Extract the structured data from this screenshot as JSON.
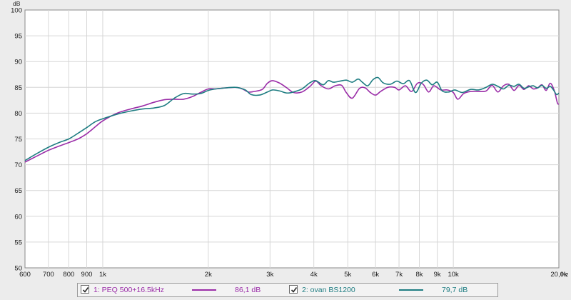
{
  "chart_data": {
    "type": "line",
    "x_scale": "log",
    "y_unit": "dB",
    "x_unit": "Hz",
    "ylim": [
      50,
      100
    ],
    "xlim": [
      600,
      20000
    ],
    "grid": true,
    "y_ticks": [
      "50",
      "55",
      "60",
      "65",
      "70",
      "75",
      "80",
      "85",
      "90",
      "95",
      "100"
    ],
    "x_ticks": [
      {
        "v": 600,
        "label": "600"
      },
      {
        "v": 700,
        "label": "700"
      },
      {
        "v": 800,
        "label": "800"
      },
      {
        "v": 900,
        "label": "900"
      },
      {
        "v": 1000,
        "label": "1k"
      },
      {
        "v": 2000,
        "label": "2k"
      },
      {
        "v": 3000,
        "label": "3k"
      },
      {
        "v": 4000,
        "label": "4k"
      },
      {
        "v": 5000,
        "label": "5k"
      },
      {
        "v": 6000,
        "label": "6k"
      },
      {
        "v": 7000,
        "label": "7k"
      },
      {
        "v": 8000,
        "label": "8k"
      },
      {
        "v": 9000,
        "label": "9k"
      },
      {
        "v": 10000,
        "label": "10k"
      },
      {
        "v": 20000,
        "label": "20,0k"
      }
    ],
    "series": [
      {
        "name": "1: PEQ 500+16.5kHz",
        "color": "#9b2ea8",
        "points": [
          [
            600,
            70.5
          ],
          [
            650,
            71.7
          ],
          [
            700,
            72.8
          ],
          [
            750,
            73.6
          ],
          [
            800,
            74.3
          ],
          [
            850,
            75.0
          ],
          [
            900,
            76.0
          ],
          [
            950,
            77.3
          ],
          [
            1000,
            78.5
          ],
          [
            1100,
            80.0
          ],
          [
            1200,
            80.8
          ],
          [
            1300,
            81.4
          ],
          [
            1400,
            82.1
          ],
          [
            1500,
            82.6
          ],
          [
            1600,
            82.7
          ],
          [
            1700,
            82.7
          ],
          [
            1800,
            83.2
          ],
          [
            1900,
            84.0
          ],
          [
            2000,
            84.7
          ],
          [
            2100,
            84.7
          ],
          [
            2250,
            84.9
          ],
          [
            2400,
            85.0
          ],
          [
            2500,
            84.7
          ],
          [
            2600,
            84.1
          ],
          [
            2700,
            84.2
          ],
          [
            2850,
            84.6
          ],
          [
            2950,
            85.8
          ],
          [
            3050,
            86.3
          ],
          [
            3200,
            85.8
          ],
          [
            3350,
            84.9
          ],
          [
            3500,
            84.0
          ],
          [
            3700,
            84.1
          ],
          [
            3900,
            85.2
          ],
          [
            4050,
            86.2
          ],
          [
            4200,
            85.3
          ],
          [
            4400,
            84.7
          ],
          [
            4600,
            85.3
          ],
          [
            4800,
            85.4
          ],
          [
            4950,
            84.0
          ],
          [
            5150,
            82.9
          ],
          [
            5400,
            84.8
          ],
          [
            5600,
            84.9
          ],
          [
            5800,
            84.0
          ],
          [
            6000,
            83.5
          ],
          [
            6200,
            84.2
          ],
          [
            6500,
            85.0
          ],
          [
            6800,
            85.0
          ],
          [
            7000,
            84.5
          ],
          [
            7300,
            85.3
          ],
          [
            7600,
            84.2
          ],
          [
            7900,
            85.8
          ],
          [
            8200,
            85.6
          ],
          [
            8500,
            84.1
          ],
          [
            8800,
            85.3
          ],
          [
            9200,
            84.5
          ],
          [
            9600,
            84.5
          ],
          [
            10000,
            84.0
          ],
          [
            10300,
            82.7
          ],
          [
            10700,
            83.8
          ],
          [
            11200,
            84.2
          ],
          [
            11800,
            84.2
          ],
          [
            12400,
            84.3
          ],
          [
            12900,
            85.4
          ],
          [
            13400,
            84.1
          ],
          [
            13900,
            85.3
          ],
          [
            14400,
            85.6
          ],
          [
            14900,
            84.4
          ],
          [
            15400,
            85.4
          ],
          [
            15900,
            84.6
          ],
          [
            16400,
            85.3
          ],
          [
            16900,
            84.7
          ],
          [
            17400,
            84.9
          ],
          [
            17900,
            85.5
          ],
          [
            18400,
            84.4
          ],
          [
            18900,
            85.8
          ],
          [
            19400,
            84.4
          ],
          [
            19800,
            82.0
          ],
          [
            20000,
            81.8
          ]
        ]
      },
      {
        "name": "2: ovan BS1200",
        "color": "#1f7d82",
        "points": [
          [
            600,
            70.8
          ],
          [
            650,
            72.2
          ],
          [
            700,
            73.4
          ],
          [
            750,
            74.3
          ],
          [
            800,
            75.0
          ],
          [
            850,
            76.1
          ],
          [
            900,
            77.2
          ],
          [
            950,
            78.3
          ],
          [
            1000,
            78.9
          ],
          [
            1100,
            79.8
          ],
          [
            1200,
            80.4
          ],
          [
            1300,
            80.8
          ],
          [
            1400,
            81.0
          ],
          [
            1500,
            81.5
          ],
          [
            1600,
            82.9
          ],
          [
            1700,
            83.8
          ],
          [
            1800,
            83.7
          ],
          [
            1900,
            83.8
          ],
          [
            2000,
            84.4
          ],
          [
            2100,
            84.7
          ],
          [
            2250,
            84.9
          ],
          [
            2400,
            85.0
          ],
          [
            2550,
            84.5
          ],
          [
            2650,
            83.6
          ],
          [
            2800,
            83.5
          ],
          [
            2950,
            84.1
          ],
          [
            3050,
            84.5
          ],
          [
            3200,
            84.3
          ],
          [
            3350,
            83.9
          ],
          [
            3500,
            84.1
          ],
          [
            3700,
            84.7
          ],
          [
            3900,
            85.9
          ],
          [
            4050,
            86.3
          ],
          [
            4250,
            85.5
          ],
          [
            4400,
            86.3
          ],
          [
            4550,
            86.0
          ],
          [
            4750,
            86.2
          ],
          [
            4950,
            86.4
          ],
          [
            5150,
            86.0
          ],
          [
            5350,
            86.6
          ],
          [
            5500,
            86.0
          ],
          [
            5700,
            85.3
          ],
          [
            5900,
            86.5
          ],
          [
            6100,
            86.9
          ],
          [
            6300,
            85.9
          ],
          [
            6600,
            85.6
          ],
          [
            6900,
            86.2
          ],
          [
            7200,
            85.7
          ],
          [
            7500,
            86.3
          ],
          [
            7800,
            84.0
          ],
          [
            8100,
            85.8
          ],
          [
            8400,
            86.4
          ],
          [
            8700,
            85.5
          ],
          [
            9000,
            86.0
          ],
          [
            9300,
            84.3
          ],
          [
            9700,
            84.1
          ],
          [
            10100,
            84.5
          ],
          [
            10600,
            84.0
          ],
          [
            11200,
            84.6
          ],
          [
            11800,
            84.5
          ],
          [
            12400,
            85.0
          ],
          [
            12900,
            85.6
          ],
          [
            13400,
            85.2
          ],
          [
            13900,
            84.7
          ],
          [
            14400,
            85.4
          ],
          [
            14900,
            85.2
          ],
          [
            15400,
            85.6
          ],
          [
            15900,
            84.8
          ],
          [
            16400,
            85.1
          ],
          [
            16900,
            85.3
          ],
          [
            17400,
            84.9
          ],
          [
            17900,
            85.4
          ],
          [
            18400,
            84.8
          ],
          [
            18900,
            85.2
          ],
          [
            19300,
            84.5
          ],
          [
            19700,
            83.6
          ],
          [
            20000,
            83.9
          ]
        ]
      }
    ],
    "legend": [
      {
        "label": "1: PEQ 500+16.5kHz",
        "value": "86,1 dB",
        "checked": true
      },
      {
        "label": "2: ovan BS1200",
        "value": "79,7 dB",
        "checked": true
      }
    ]
  },
  "colors": {
    "plot_bg": "#ffffff",
    "grid": "#d6d6d6",
    "axis": "#8a8a8a"
  }
}
